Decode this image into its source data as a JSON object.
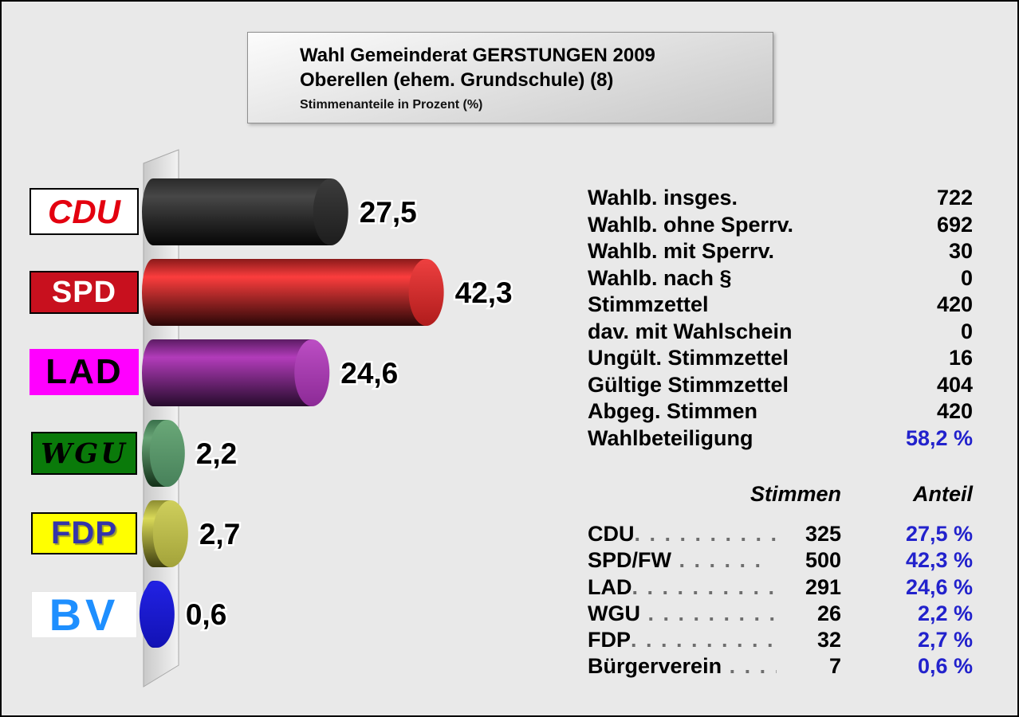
{
  "title_box": {
    "line1": "Wahl Gemeinderat GERSTUNGEN 2009",
    "line2": "Oberellen (ehem. Grundschule) (8)",
    "subtitle": "Stimmenanteile in Prozent (%)"
  },
  "chart_data": {
    "type": "bar",
    "orientation": "horizontal",
    "title": "Wahl Gemeinderat GERSTUNGEN 2009",
    "subtitle": "Oberellen (ehem. Grundschule) (8)",
    "note": "Stimmenanteile in Prozent (%)",
    "categories": [
      "CDU",
      "SPD",
      "LAD",
      "WGU",
      "FDP",
      "BV"
    ],
    "values": [
      27.5,
      42.3,
      24.6,
      2.2,
      2.7,
      0.6
    ],
    "value_labels": [
      "27,5",
      "42,3",
      "24,6",
      "2,2",
      "2,7",
      "0,6"
    ],
    "votes": [
      325,
      500,
      291,
      26,
      32,
      7
    ],
    "unit": "percent",
    "xlim": [
      0,
      50
    ],
    "grid": false,
    "legend": "party logos left of each bar",
    "bar_styles": [
      {
        "top": "#2a2a2a",
        "bright": "#474747",
        "bottom": "#060606",
        "capTop": "#3c3c3c",
        "capBottom": "#1d1d1d"
      },
      {
        "top": "#8a1a1a",
        "bright": "#fb3d3d",
        "bottom": "#2a0707",
        "capTop": "#ee4040",
        "capBottom": "#b01c1c"
      },
      {
        "top": "#5c1c64",
        "bright": "#b23cba",
        "bottom": "#260b2c",
        "capTop": "#bc4ec4",
        "capBottom": "#8c2a96"
      },
      {
        "top": "#39704a",
        "bright": "#68a476",
        "bottom": "#123018",
        "capTop": "#6aa878",
        "capBottom": "#47815a"
      },
      {
        "top": "#8d8d32",
        "bright": "#d9d958",
        "bottom": "#3e3e0f",
        "capTop": "#cfcf5c",
        "capBottom": "#a3a33a"
      },
      {
        "top": "#1414c8",
        "bright": "#2525ea",
        "bottom": "#0c0c96",
        "capTop": "#2222e4",
        "capBottom": "#1212b4"
      }
    ]
  },
  "party_logos": [
    {
      "label": "CDU",
      "bg": "#ffffff",
      "fg": "#e3000f",
      "border": "#000000",
      "border_w": 2
    },
    {
      "label": "SPD",
      "bg": "#c8101e",
      "fg": "#ffffff",
      "border": "#000000",
      "border_w": 2
    },
    {
      "label": "LAD",
      "bg": "#ff00ff",
      "fg": "#000000",
      "border": null,
      "border_w": 0
    },
    {
      "label": "WGU",
      "bg": "#0a7a0a",
      "fg": "#000000",
      "border": "#000000",
      "border_w": 2
    },
    {
      "label": "FDP",
      "bg": "#ffff00",
      "fg": "#3434aa",
      "border": "#000000",
      "border_w": 2
    },
    {
      "label": "BV",
      "bg": "#ffffff",
      "fg": "#1e8fff",
      "border": "#e6e6e6",
      "border_w": 1
    }
  ],
  "stats": {
    "rows": [
      {
        "label": "Wahlb. insges.",
        "value": "722",
        "accent": false
      },
      {
        "label": "Wahlb. ohne Sperrv.",
        "value": "692",
        "accent": false
      },
      {
        "label": "Wahlb. mit Sperrv.",
        "value": "30",
        "accent": false
      },
      {
        "label": "Wahlb. nach §",
        "value": "0",
        "accent": false
      },
      {
        "label": "Stimmzettel",
        "value": "420",
        "accent": false
      },
      {
        "label": "dav. mit Wahlschein",
        "value": "0",
        "accent": false
      },
      {
        "label": "Ungült. Stimmzettel",
        "value": "16",
        "accent": false
      },
      {
        "label": "Gültige Stimmzettel",
        "value": "404",
        "accent": false
      },
      {
        "label": "Abgeg. Stimmen",
        "value": "420",
        "accent": false
      },
      {
        "label": "Wahlbeteiligung",
        "value": "58,2 %",
        "accent": true
      }
    ]
  },
  "results_table": {
    "col_votes": "Stimmen",
    "col_share": "Anteil",
    "rows": [
      {
        "party": "CDU",
        "dots": ". . . . . . . . . .",
        "votes": "325",
        "share": "27,5 %"
      },
      {
        "party": "SPD/FW",
        "dots": " . . . . . .",
        "votes": "500",
        "share": "42,3 %"
      },
      {
        "party": "LAD",
        "dots": ". . . . . . . . . .",
        "votes": "291",
        "share": "24,6 %"
      },
      {
        "party": "WGU",
        "dots": " . . . . . . . . . .",
        "votes": "26",
        "share": "2,2 %"
      },
      {
        "party": "FDP",
        "dots": ". . . . . . . . . . .",
        "votes": "32",
        "share": "2,7 %"
      },
      {
        "party": "Bürgerverein",
        "dots": " . . . .",
        "votes": "7",
        "share": "0,6 %"
      }
    ]
  },
  "colors": {
    "background": "#e9e9e9",
    "frame": "#000000",
    "accent_blue": "#2222cc",
    "dots_gray": "#6e6e6e",
    "title_box_top": "#fcfcfc",
    "title_box_bottom": "#c7c7c7",
    "wall_left": "#c9c9c9",
    "wall_right": "#f2f2f2",
    "wall_stroke": "#a8a8a8"
  }
}
